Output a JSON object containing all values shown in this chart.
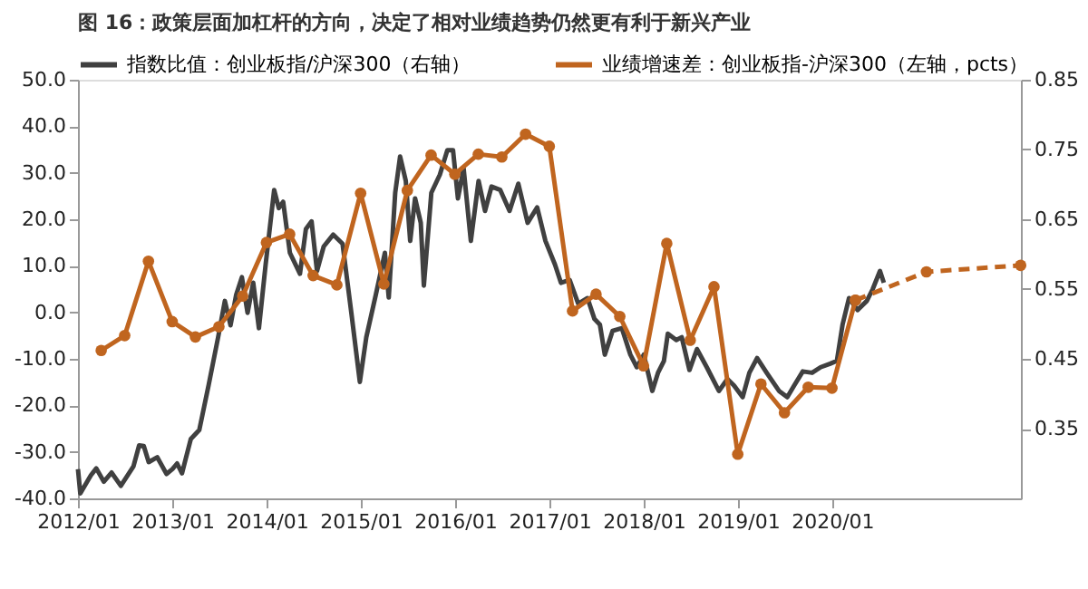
{
  "chart_data": {
    "type": "line",
    "title": "图 16：政策层面加杠杆的方向，决定了相对业绩趋势仍然更有利于新兴产业",
    "xlim": [
      "2012-01-01",
      "2022-01-01"
    ],
    "xticks": [
      {
        "value": "2012-01-01",
        "label": "2012/01"
      },
      {
        "value": "2013-01-01",
        "label": "2013/01"
      },
      {
        "value": "2014-01-01",
        "label": "2014/01"
      },
      {
        "value": "2015-01-01",
        "label": "2015/01"
      },
      {
        "value": "2016-01-01",
        "label": "2016/01"
      },
      {
        "value": "2017-01-01",
        "label": "2017/01"
      },
      {
        "value": "2018-01-01",
        "label": "2018/01"
      },
      {
        "value": "2019-01-01",
        "label": "2019/01"
      },
      {
        "value": "2020-01-01",
        "label": "2020/01"
      }
    ],
    "ylim": [
      -40,
      50
    ],
    "yticks": [
      {
        "value": -40,
        "label": "-40.0"
      },
      {
        "value": -30,
        "label": "-30.0"
      },
      {
        "value": -20,
        "label": "-20.0"
      },
      {
        "value": -10,
        "label": "-10.0"
      },
      {
        "value": 0,
        "label": "0.0"
      },
      {
        "value": 10,
        "label": "10.0"
      },
      {
        "value": 20,
        "label": "20.0"
      },
      {
        "value": 30,
        "label": "30.0"
      },
      {
        "value": 40,
        "label": "40.0"
      },
      {
        "value": 50,
        "label": "50.0"
      }
    ],
    "y2lim": [
      0.25,
      0.85
    ],
    "y2ticks": [
      0.35,
      0.45,
      0.55,
      0.65,
      0.75,
      0.85
    ],
    "grid": false,
    "legend": "top",
    "series": [
      {
        "name": "指数比值：创业板指/沪深300（右轴）",
        "axis": "y2",
        "color": "#404040",
        "marker": "none",
        "line_style": "solid",
        "x": [
          "2012-01-01",
          "2012-01-10",
          "2012-02-20",
          "2012-03-12",
          "2012-04-10",
          "2012-05-10",
          "2012-06-15",
          "2012-08-03",
          "2012-08-25",
          "2012-09-12",
          "2012-10-01",
          "2012-11-03",
          "2012-12-09",
          "2013-01-01",
          "2013-01-19",
          "2013-02-07",
          "2013-03-13",
          "2013-04-15",
          "2013-05-21",
          "2013-06-27",
          "2013-07-23",
          "2013-08-14",
          "2013-09-05",
          "2013-09-27",
          "2013-10-19",
          "2013-11-10",
          "2013-12-02",
          "2013-12-28",
          "2014-01-30",
          "2014-02-17",
          "2014-03-06",
          "2014-04-01",
          "2014-05-10",
          "2014-06-02",
          "2014-06-24",
          "2014-07-15",
          "2014-08-10",
          "2014-09-16",
          "2014-10-22",
          "2014-11-25",
          "2014-12-28",
          "2015-01-22",
          "2015-02-28",
          "2015-04-04",
          "2015-04-19",
          "2015-05-14",
          "2015-06-02",
          "2015-06-24",
          "2015-07-11",
          "2015-07-30",
          "2015-08-21",
          "2015-09-02",
          "2015-10-01",
          "2015-11-03",
          "2015-12-02",
          "2015-12-24",
          "2016-01-12",
          "2016-02-03",
          "2016-03-02",
          "2016-04-01",
          "2016-04-26",
          "2016-05-21",
          "2016-06-24",
          "2016-07-30",
          "2016-09-02",
          "2016-10-08",
          "2016-11-14",
          "2016-12-16",
          "2017-01-22",
          "2017-02-14",
          "2017-03-20",
          "2017-04-22",
          "2017-05-28",
          "2017-06-24",
          "2017-07-15",
          "2017-08-03",
          "2017-09-02",
          "2017-10-08",
          "2017-11-10",
          "2017-12-05",
          "2018-01-01",
          "2018-02-03",
          "2018-02-25",
          "2018-03-20",
          "2018-04-04",
          "2018-05-07",
          "2018-05-28",
          "2018-06-27",
          "2018-07-26",
          "2018-09-02",
          "2018-10-19",
          "2018-11-21",
          "2018-12-16",
          "2019-01-19",
          "2019-02-14",
          "2019-03-16",
          "2019-04-22",
          "2019-06-09",
          "2019-07-11",
          "2019-08-07",
          "2019-09-09",
          "2019-10-15",
          "2019-11-17",
          "2019-12-24",
          "2020-01-19",
          "2020-02-10",
          "2020-03-06",
          "2020-04-08",
          "2020-05-14",
          "2020-06-06",
          "2020-07-04",
          "2020-07-19"
        ],
        "values": [
          0.292,
          0.257,
          0.283,
          0.293,
          0.274,
          0.287,
          0.268,
          0.296,
          0.326,
          0.325,
          0.302,
          0.309,
          0.285,
          0.292,
          0.3,
          0.286,
          0.335,
          0.348,
          0.412,
          0.481,
          0.533,
          0.498,
          0.542,
          0.567,
          0.516,
          0.559,
          0.494,
          0.585,
          0.692,
          0.666,
          0.675,
          0.602,
          0.572,
          0.636,
          0.647,
          0.576,
          0.611,
          0.628,
          0.615,
          0.516,
          0.417,
          0.481,
          0.542,
          0.602,
          0.538,
          0.688,
          0.74,
          0.705,
          0.619,
          0.68,
          0.645,
          0.555,
          0.688,
          0.714,
          0.749,
          0.749,
          0.68,
          0.723,
          0.619,
          0.705,
          0.662,
          0.697,
          0.692,
          0.662,
          0.701,
          0.645,
          0.667,
          0.619,
          0.585,
          0.559,
          0.563,
          0.529,
          0.537,
          0.507,
          0.499,
          0.456,
          0.49,
          0.494,
          0.456,
          0.438,
          0.456,
          0.404,
          0.43,
          0.447,
          0.486,
          0.477,
          0.481,
          0.434,
          0.464,
          0.438,
          0.404,
          0.421,
          0.412,
          0.395,
          0.43,
          0.451,
          0.43,
          0.404,
          0.395,
          0.412,
          0.432,
          0.43,
          0.438,
          0.443,
          0.447,
          0.499,
          0.537,
          0.52,
          0.533,
          0.55,
          0.576,
          0.559
        ]
      },
      {
        "name": "业绩增速差：创业板指-沪深300（左轴，pcts）",
        "axis": "y",
        "color": "#c0651f",
        "marker": "circle",
        "line_style": "solid",
        "x": [
          "2012-03-31",
          "2012-06-30",
          "2012-09-30",
          "2012-12-31",
          "2013-03-31",
          "2013-06-30",
          "2013-09-30",
          "2013-12-31",
          "2014-03-31",
          "2014-06-30",
          "2014-09-30",
          "2014-12-31",
          "2015-03-31",
          "2015-06-30",
          "2015-09-30",
          "2015-12-31",
          "2016-03-31",
          "2016-06-30",
          "2016-09-30",
          "2016-12-31",
          "2017-03-31",
          "2017-06-30",
          "2017-09-30",
          "2017-12-31",
          "2018-03-31",
          "2018-06-30",
          "2018-09-30",
          "2018-12-31",
          "2019-03-31",
          "2019-06-30",
          "2019-09-30",
          "2019-12-31",
          "2020-03-31"
        ],
        "values": [
          -8.2,
          -5.0,
          11.0,
          -2.0,
          -5.3,
          -3.1,
          3.5,
          15.0,
          16.8,
          7.9,
          5.9,
          25.6,
          6.1,
          26.2,
          33.8,
          29.7,
          34.0,
          33.4,
          38.3,
          35.7,
          0.3,
          3.9,
          -0.9,
          -11.5,
          14.8,
          -6.0,
          5.5,
          -30.5,
          -15.4,
          -21.6,
          -16.1,
          -16.3,
          2.6
        ]
      },
      {
        "axis": "y",
        "color": "#c0651f",
        "marker": "circle",
        "line_style": "dashed",
        "x": [
          "2020-03-31",
          "2020-12-31",
          "2021-12-31"
        ],
        "values": [
          2.6,
          8.7,
          10.1
        ]
      }
    ]
  }
}
